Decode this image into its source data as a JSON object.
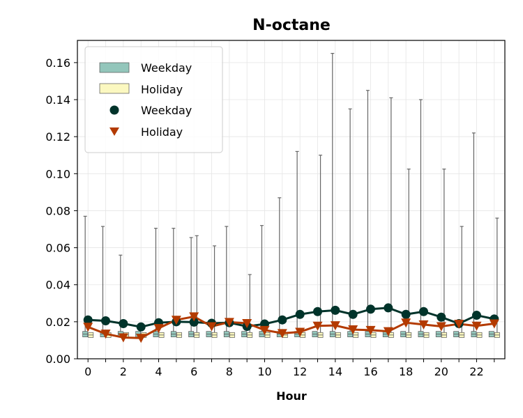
{
  "chart_data": {
    "type": "line",
    "title": "N-octane",
    "xlabel": "Hour",
    "ylabel": "",
    "xlim": [
      -0.6,
      23.6
    ],
    "ylim": [
      0,
      0.172
    ],
    "x": [
      0,
      1,
      2,
      3,
      4,
      5,
      6,
      7,
      8,
      9,
      10,
      11,
      12,
      13,
      14,
      15,
      16,
      17,
      18,
      19,
      20,
      21,
      22,
      23
    ],
    "x_ticks": [
      0,
      2,
      4,
      6,
      8,
      10,
      12,
      14,
      16,
      18,
      20,
      22
    ],
    "x_tick_labels": [
      "0",
      "2",
      "4",
      "6",
      "8",
      "10",
      "12",
      "14",
      "16",
      "18",
      "20",
      "22"
    ],
    "y_ticks": [
      0,
      0.02,
      0.04,
      0.06,
      0.08,
      0.1,
      0.12,
      0.14,
      0.16
    ],
    "y_tick_labels": [
      "0.00",
      "0.02",
      "0.04",
      "0.06",
      "0.08",
      "0.10",
      "0.12",
      "0.14",
      "0.16"
    ],
    "grid": true,
    "legend_position": "top-left",
    "legend": [
      "Weekday",
      "Holiday",
      "Weekday",
      "Holiday"
    ],
    "series": [
      {
        "name": "Weekday",
        "kind": "mean-line",
        "marker": "circle",
        "color": "#00332a",
        "values": [
          0.021,
          0.0205,
          0.019,
          0.0172,
          0.0195,
          0.02,
          0.0198,
          0.0192,
          0.0195,
          0.0175,
          0.0188,
          0.021,
          0.024,
          0.0255,
          0.0262,
          0.024,
          0.0268,
          0.0275,
          0.024,
          0.0255,
          0.0225,
          0.019,
          0.0235,
          0.0215
        ]
      },
      {
        "name": "Holiday",
        "kind": "mean-line",
        "marker": "triangle-down",
        "color": "#b33a00",
        "values": [
          0.0172,
          0.0135,
          0.0115,
          0.0112,
          0.0165,
          0.021,
          0.0228,
          0.0175,
          0.0198,
          0.0192,
          0.0155,
          0.0138,
          0.0145,
          0.0178,
          0.018,
          0.0158,
          0.0155,
          0.0148,
          0.0195,
          0.0185,
          0.0175,
          0.0188,
          0.0178,
          0.019
        ]
      }
    ],
    "boxplots": [
      {
        "name": "Weekday",
        "color": "#93c6bb",
        "q1": 0.0118,
        "q3": 0.0148,
        "whisker_high": [
          0.077,
          0.0715,
          0.056,
          0.0148,
          0.0705,
          0.0705,
          0.0655,
          0.0148,
          0.0715,
          0.0148,
          0.072,
          0.087,
          0.112,
          0.0148,
          0.165,
          0.135,
          0.145,
          0.0148,
          0.0148,
          0.14,
          0.0148,
          0.0148,
          0.122,
          0.0148
        ]
      },
      {
        "name": "Holiday",
        "color": "#fbf8c0",
        "q1": 0.0115,
        "q3": 0.0142,
        "whisker_high": [
          0.0142,
          0.0142,
          0.0142,
          0.0142,
          0.0142,
          0.0142,
          0.0665,
          0.061,
          0.0142,
          0.0455,
          0.0142,
          0.0142,
          0.0142,
          0.11,
          0.0142,
          0.0142,
          0.0142,
          0.141,
          0.1025,
          0.0142,
          0.1025,
          0.0715,
          0.0142,
          0.076
        ]
      }
    ]
  },
  "colors": {
    "weekday_box": "#93c6bb",
    "holiday_box": "#fbf8c0",
    "weekday_line": "#00332a",
    "holiday_line": "#b33a00",
    "whisker": "#666666"
  }
}
